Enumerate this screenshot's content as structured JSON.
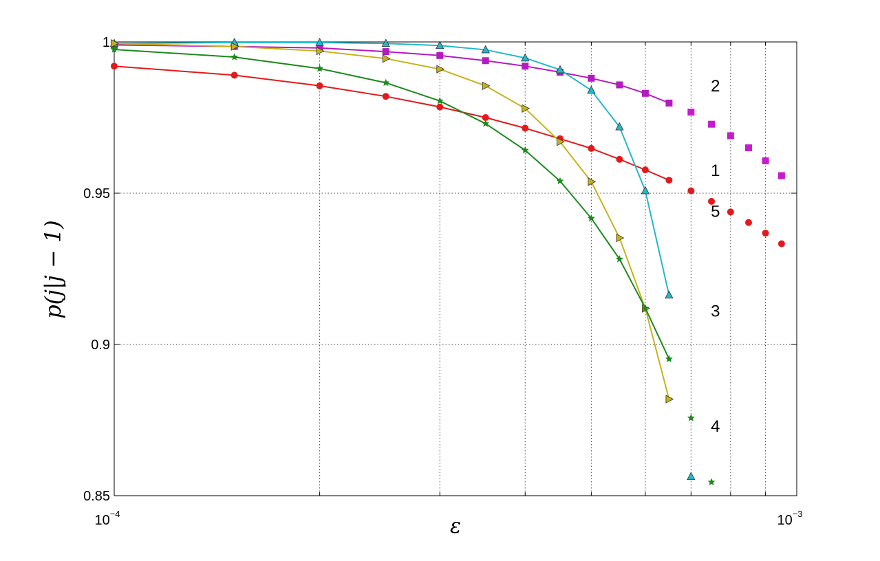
{
  "chart_data": {
    "type": "line",
    "xlabel": "ε",
    "ylabel": "p(j|j − 1)",
    "x_scale": "log",
    "xlim": [
      0.0001,
      0.001
    ],
    "ylim": [
      0.85,
      1.0
    ],
    "grid": true,
    "x_ticks": [
      {
        "value": 0.0001,
        "base": "10",
        "exp": "−4"
      },
      {
        "value": 0.001,
        "base": "10",
        "exp": "−3"
      }
    ],
    "y_ticks": [
      {
        "value": 0.85,
        "label": "0.85"
      },
      {
        "value": 0.9,
        "label": "0.9"
      },
      {
        "value": 0.95,
        "label": "0.95"
      },
      {
        "value": 1.0,
        "label": "1"
      }
    ],
    "curve_labels": [
      {
        "text": "1",
        "x": 0.00076,
        "y": 0.9575
      },
      {
        "text": "2",
        "x": 0.00076,
        "y": 0.9855
      },
      {
        "text": "3",
        "x": 0.00076,
        "y": 0.911
      },
      {
        "text": "4",
        "x": 0.00076,
        "y": 0.873
      },
      {
        "text": "5",
        "x": 0.00076,
        "y": 0.944
      }
    ],
    "series": [
      {
        "color": "#e31a1c",
        "marker": "circle",
        "line": true,
        "x": [
          0.0001,
          0.00015,
          0.0002,
          0.00025,
          0.0003,
          0.00035,
          0.0004,
          0.00045,
          0.0005,
          0.00055,
          0.0006,
          0.00065
        ],
        "y": [
          0.992,
          0.989,
          0.9855,
          0.982,
          0.9785,
          0.975,
          0.9715,
          0.968,
          0.9648,
          0.9612,
          0.9577,
          0.9543
        ]
      },
      {
        "color": "#e31a1c",
        "marker": "circle",
        "line": false,
        "x": [
          0.0007,
          0.00075,
          0.0008,
          0.00085,
          0.0009,
          0.00095
        ],
        "y": [
          0.9508,
          0.9473,
          0.9438,
          0.9403,
          0.9368,
          0.9333
        ]
      },
      {
        "color": "#b41bbf",
        "marker": "square",
        "line": true,
        "x": [
          0.0001,
          0.00015,
          0.0002,
          0.00025,
          0.0003,
          0.00035,
          0.0004,
          0.00045,
          0.0005,
          0.00055,
          0.0006,
          0.00065
        ],
        "y": [
          0.999,
          0.9985,
          0.998,
          0.9968,
          0.9955,
          0.9938,
          0.992,
          0.99,
          0.988,
          0.9858,
          0.983,
          0.9798
        ]
      },
      {
        "color": "#c61ccf",
        "marker": "square",
        "line": false,
        "x": [
          0.0007,
          0.00075,
          0.0008,
          0.00085,
          0.0009,
          0.00095
        ],
        "y": [
          0.9768,
          0.9728,
          0.969,
          0.965,
          0.9607,
          0.9558
        ]
      },
      {
        "color": "#23b8c8",
        "marker": "triangle-up",
        "line": true,
        "x": [
          0.0001,
          0.00015,
          0.0002,
          0.00025,
          0.0003,
          0.00035,
          0.0004,
          0.00045,
          0.0005,
          0.00055,
          0.0006,
          0.00065
        ],
        "y": [
          0.9995,
          0.9998,
          0.9998,
          0.9995,
          0.9988,
          0.9974,
          0.9947,
          0.9908,
          0.984,
          0.9719,
          0.9508,
          0.9163
        ]
      },
      {
        "color": "#23b8c8",
        "marker": "triangle-up",
        "line": false,
        "x": [
          0.0007
        ],
        "y": [
          0.8563
        ]
      },
      {
        "color": "#c8b21c",
        "marker": "triangle-right",
        "line": true,
        "x": [
          0.0001,
          0.00015,
          0.0002,
          0.00025,
          0.0003,
          0.00035,
          0.0004,
          0.00045,
          0.0005,
          0.00055,
          0.0006,
          0.00065
        ],
        "y": [
          0.9995,
          0.9985,
          0.997,
          0.9945,
          0.991,
          0.9855,
          0.978,
          0.967,
          0.9538,
          0.9352,
          0.9119,
          0.8819
        ]
      },
      {
        "color": "#1d8a1d",
        "marker": "star",
        "line": true,
        "x": [
          0.0001,
          0.00015,
          0.0002,
          0.00025,
          0.0003,
          0.00035,
          0.0004,
          0.00045,
          0.0005,
          0.00055,
          0.0006,
          0.00065
        ],
        "y": [
          0.9975,
          0.995,
          0.9912,
          0.9865,
          0.9805,
          0.973,
          0.9642,
          0.954,
          0.9417,
          0.9282,
          0.912,
          0.8952
        ]
      },
      {
        "color": "#1d8a1d",
        "marker": "star",
        "line": false,
        "x": [
          0.0007,
          0.00075
        ],
        "y": [
          0.8757,
          0.8545
        ]
      }
    ]
  }
}
